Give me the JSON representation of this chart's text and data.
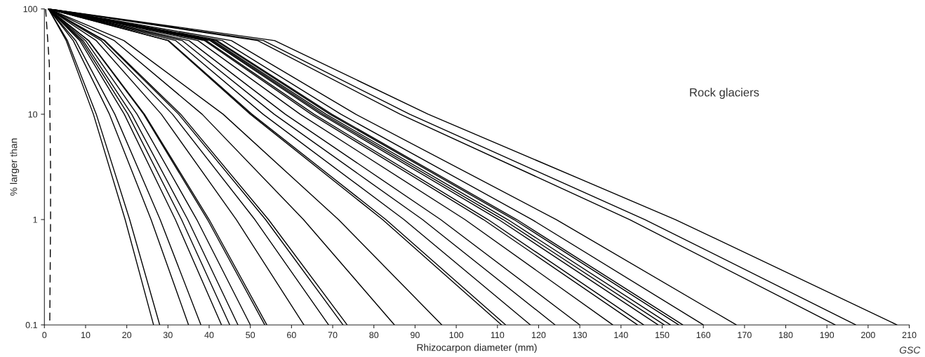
{
  "chart_data": {
    "type": "line",
    "xlabel": "Rhizocarpon diameter (mm)",
    "ylabel": "% larger than",
    "log": "y",
    "xlim": [
      0,
      210
    ],
    "xticks": [
      0,
      10,
      20,
      30,
      40,
      50,
      60,
      70,
      80,
      90,
      100,
      110,
      120,
      130,
      140,
      150,
      160,
      170,
      180,
      190,
      200,
      210
    ],
    "ylim": [
      0.1,
      100
    ],
    "yticks": [
      0.1,
      1,
      10,
      100
    ],
    "grid": false,
    "marker": "none",
    "annotations": [
      "Rock glaciers",
      "GSC"
    ],
    "series": [
      {
        "color": "#000000",
        "line_style": "dashed",
        "x": [
          0.3,
          1.2,
          1.5,
          1.5,
          1.3
        ],
        "values": [
          100,
          30,
          3,
          1,
          0.1
        ]
      },
      {
        "color": "#000000",
        "x": [
          1,
          5.3,
          11.9,
          19.6,
          26.5
        ],
        "values": [
          100,
          50,
          10,
          1,
          0.1
        ]
      },
      {
        "color": "#000000",
        "x": [
          1,
          5.6,
          12.6,
          20.7,
          28
        ],
        "values": [
          100,
          50,
          10,
          1,
          0.1
        ]
      },
      {
        "color": "#000000",
        "x": [
          1,
          7,
          15.8,
          25.9,
          35
        ],
        "values": [
          100,
          50,
          10,
          1,
          0.1
        ]
      },
      {
        "color": "#000000",
        "x": [
          1,
          7.6,
          17.1,
          28.1,
          38
        ],
        "values": [
          100,
          50,
          10,
          1,
          0.1
        ]
      },
      {
        "color": "#000000",
        "x": [
          1,
          8.6,
          19.4,
          31.8,
          43
        ],
        "values": [
          100,
          50,
          10,
          1,
          0.1
        ]
      },
      {
        "color": "#000000",
        "x": [
          1,
          9,
          20.3,
          33.3,
          45
        ],
        "values": [
          100,
          50,
          10,
          1,
          0.1
        ]
      },
      {
        "color": "#000000",
        "x": [
          1,
          9.4,
          21.2,
          34.8,
          47
        ],
        "values": [
          100,
          50,
          10,
          1,
          0.1
        ]
      },
      {
        "color": "#000000",
        "x": [
          1,
          10,
          22.5,
          37,
          50
        ],
        "values": [
          100,
          50,
          10,
          1,
          0.1
        ]
      },
      {
        "color": "#000000",
        "x": [
          1,
          10.7,
          24.1,
          39.6,
          53.5
        ],
        "values": [
          100,
          50,
          10,
          1,
          0.1
        ]
      },
      {
        "color": "#000000",
        "x": [
          1,
          10.8,
          24.3,
          40,
          54
        ],
        "values": [
          100,
          50,
          10,
          1,
          0.1
        ]
      },
      {
        "color": "#000000",
        "x": [
          1,
          12.6,
          28.4,
          46.6,
          63
        ],
        "values": [
          100,
          50,
          10,
          1,
          0.1
        ]
      },
      {
        "color": "#000000",
        "x": [
          1,
          13.8,
          31.1,
          51.1,
          69
        ],
        "values": [
          100,
          50,
          10,
          1,
          0.1
        ]
      },
      {
        "color": "#000000",
        "x": [
          1,
          14.5,
          32.6,
          53.7,
          72.5
        ],
        "values": [
          100,
          50,
          10,
          1,
          0.1
        ]
      },
      {
        "color": "#000000",
        "x": [
          1,
          14.7,
          33.1,
          54.4,
          73.5
        ],
        "values": [
          100,
          50,
          10,
          1,
          0.1
        ]
      },
      {
        "color": "#000000",
        "x": [
          1,
          17,
          38.3,
          62.9,
          85
        ],
        "values": [
          100,
          50,
          10,
          1,
          0.1
        ]
      },
      {
        "color": "#000000",
        "x": [
          1,
          19.3,
          43.4,
          71.4,
          96.5
        ],
        "values": [
          100,
          50,
          10,
          1,
          0.1
        ]
      },
      {
        "color": "#000000",
        "x": [
          1,
          30,
          50,
          82.1,
          111
        ],
        "values": [
          100,
          50,
          10,
          1,
          0.1
        ]
      },
      {
        "color": "#000000",
        "x": [
          1,
          30.2,
          50.4,
          82.9,
          112
        ],
        "values": [
          100,
          50,
          10,
          1,
          0.1
        ]
      },
      {
        "color": "#000000",
        "x": [
          1,
          31.9,
          53.1,
          87.3,
          118
        ],
        "values": [
          100,
          50,
          10,
          1,
          0.1
        ]
      },
      {
        "color": "#000000",
        "x": [
          1,
          33.5,
          55.8,
          91.8,
          124
        ],
        "values": [
          100,
          50,
          10,
          1,
          0.1
        ]
      },
      {
        "color": "#000000",
        "x": [
          1,
          35.1,
          58.5,
          96.2,
          130
        ],
        "values": [
          100,
          50,
          10,
          1,
          0.1
        ]
      },
      {
        "color": "#000000",
        "x": [
          1,
          37.3,
          62.1,
          102.1,
          138
        ],
        "values": [
          100,
          50,
          10,
          1,
          0.1
        ]
      },
      {
        "color": "#000000",
        "x": [
          1,
          38.9,
          64.8,
          106.6,
          144
        ],
        "values": [
          100,
          50,
          10,
          1,
          0.1
        ]
      },
      {
        "color": "#000000",
        "x": [
          1,
          39.3,
          65.5,
          107.7,
          145.5
        ],
        "values": [
          100,
          50,
          10,
          1,
          0.1
        ]
      },
      {
        "color": "#000000",
        "x": [
          1,
          40.2,
          67.1,
          110.3,
          149
        ],
        "values": [
          100,
          50,
          10,
          1,
          0.1
        ]
      },
      {
        "color": "#000000",
        "x": [
          1,
          40.6,
          67.7,
          111.4,
          150.5
        ],
        "values": [
          100,
          50,
          10,
          1,
          0.1
        ]
      },
      {
        "color": "#000000",
        "x": [
          1,
          41,
          68.4,
          112.5,
          152
        ],
        "values": [
          100,
          50,
          10,
          1,
          0.1
        ]
      },
      {
        "color": "#000000",
        "x": [
          1,
          41.6,
          69.3,
          114,
          154
        ],
        "values": [
          100,
          50,
          10,
          1,
          0.1
        ]
      },
      {
        "color": "#000000",
        "x": [
          1,
          41.9,
          69.8,
          114.7,
          155
        ],
        "values": [
          100,
          50,
          10,
          1,
          0.1
        ]
      },
      {
        "color": "#000000",
        "x": [
          1,
          43.2,
          72,
          118.4,
          160
        ],
        "values": [
          100,
          50,
          10,
          1,
          0.1
        ]
      },
      {
        "color": "#000000",
        "x": [
          1,
          45.4,
          75.6,
          124.3,
          168
        ],
        "values": [
          100,
          50,
          10,
          1,
          0.1
        ]
      },
      {
        "color": "#000000",
        "x": [
          1,
          51.8,
          86.4,
          142.1,
          192
        ],
        "values": [
          100,
          50,
          10,
          1,
          0.1
        ]
      },
      {
        "color": "#000000",
        "x": [
          1,
          53.2,
          88.7,
          145.8,
          197
        ],
        "values": [
          100,
          50,
          10,
          1,
          0.1
        ]
      },
      {
        "color": "#000000",
        "x": [
          1,
          55.9,
          93.2,
          153.2,
          207
        ],
        "values": [
          100,
          50,
          10,
          1,
          0.1
        ]
      }
    ]
  }
}
